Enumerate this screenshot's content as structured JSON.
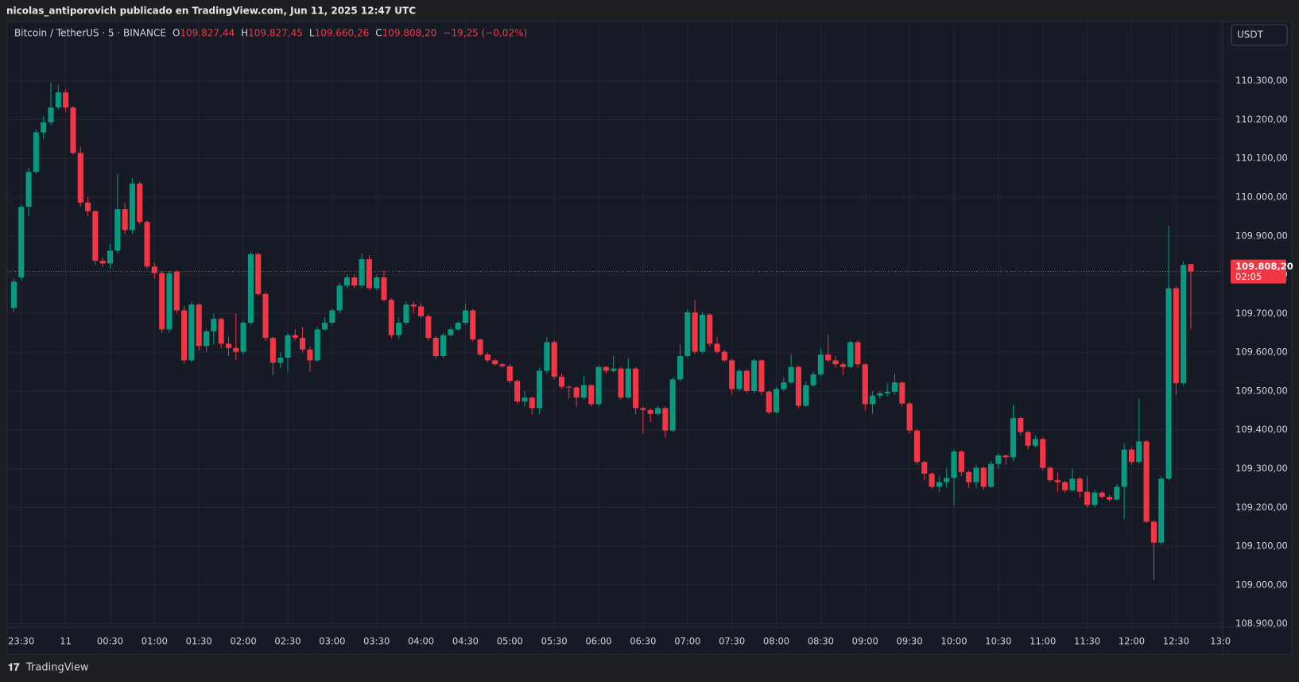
{
  "header": {
    "text": "nicolas_antiporovich publicado en TradingView.com, Jun 11, 2025 12:47 UTC"
  },
  "footer": {
    "brand": "TradingView"
  },
  "chart_data": {
    "type": "candlestick",
    "legend": {
      "symbol": "Bitcoin / TetherUS · 5 · BINANCE",
      "items": [
        {
          "key": "O",
          "text": "109.827,44"
        },
        {
          "key": "H",
          "text": "109.827,45"
        },
        {
          "key": "L",
          "text": "109.660,26"
        },
        {
          "key": "C",
          "text": "109.808,20"
        }
      ],
      "change": "−19,25 (−0,02%)"
    },
    "currency": "USDT",
    "last_price": {
      "label": "109.808,20",
      "countdown": "02:05"
    },
    "up_color": "#089981",
    "down_color": "#f23645",
    "grid": true,
    "xlim": [
      -0.8,
      163.3
    ],
    "xticks": [
      {
        "value": 1,
        "label": "23:30"
      },
      {
        "value": 7,
        "label": "11"
      },
      {
        "value": 13,
        "label": "00:30"
      },
      {
        "value": 19,
        "label": "01:00"
      },
      {
        "value": 25,
        "label": "01:30"
      },
      {
        "value": 31,
        "label": "02:00"
      },
      {
        "value": 37,
        "label": "02:30"
      },
      {
        "value": 43,
        "label": "03:00"
      },
      {
        "value": 49,
        "label": "03:30"
      },
      {
        "value": 55,
        "label": "04:00"
      },
      {
        "value": 61,
        "label": "04:30"
      },
      {
        "value": 67,
        "label": "05:00"
      },
      {
        "value": 73,
        "label": "05:30"
      },
      {
        "value": 79,
        "label": "06:00"
      },
      {
        "value": 85,
        "label": "06:30"
      },
      {
        "value": 91,
        "label": "07:00"
      },
      {
        "value": 97,
        "label": "07:30"
      },
      {
        "value": 103,
        "label": "08:00"
      },
      {
        "value": 109,
        "label": "08:30"
      },
      {
        "value": 115,
        "label": "09:00"
      },
      {
        "value": 121,
        "label": "09:30"
      },
      {
        "value": 127,
        "label": "10:00"
      },
      {
        "value": 133,
        "label": "10:30"
      },
      {
        "value": 139,
        "label": "11:00"
      },
      {
        "value": 145,
        "label": "11:30"
      },
      {
        "value": 151,
        "label": "12:00"
      },
      {
        "value": 157,
        "label": "12:30"
      },
      {
        "value": 163,
        "label": "13:0"
      }
    ],
    "ylim": [
      108891,
      110451
    ],
    "yticks": [
      {
        "value": 110300,
        "label": "110.300,00"
      },
      {
        "value": 110200,
        "label": "110.200,00"
      },
      {
        "value": 110100,
        "label": "110.100,00"
      },
      {
        "value": 110000,
        "label": "110.000,00"
      },
      {
        "value": 109900,
        "label": "109.900,00"
      },
      {
        "value": 109800,
        "label": "109.800,00"
      },
      {
        "value": 109700,
        "label": "109.700,00"
      },
      {
        "value": 109600,
        "label": "109.600,00"
      },
      {
        "value": 109500,
        "label": "109.500,00"
      },
      {
        "value": 109400,
        "label": "109.400,00"
      },
      {
        "value": 109300,
        "label": "109.300,00"
      },
      {
        "value": 109200,
        "label": "109.200,00"
      },
      {
        "value": 109100,
        "label": "109.100,00"
      },
      {
        "value": 109000,
        "label": "109.000,00"
      },
      {
        "value": 108900,
        "label": "108.900,00"
      }
    ],
    "ohlc": [
      [
        109714,
        109790,
        109705,
        109782
      ],
      [
        109793,
        109980,
        109785,
        109975
      ],
      [
        109975,
        110075,
        109950,
        110065
      ],
      [
        110065,
        110175,
        110060,
        110167
      ],
      [
        110167,
        110210,
        110150,
        110193
      ],
      [
        110193,
        110295,
        110185,
        110231
      ],
      [
        110231,
        110290,
        110225,
        110270
      ],
      [
        110270,
        110280,
        110220,
        110231
      ],
      [
        110231,
        110235,
        110110,
        110114
      ],
      [
        110114,
        110130,
        109975,
        109986
      ],
      [
        109986,
        110000,
        109950,
        109964
      ],
      [
        109964,
        109966,
        109825,
        109836
      ],
      [
        109836,
        109845,
        109820,
        109829
      ],
      [
        109829,
        109880,
        109815,
        109862
      ],
      [
        109862,
        110060,
        109855,
        109969
      ],
      [
        109969,
        109985,
        109905,
        109915
      ],
      [
        109915,
        110050,
        109905,
        110035
      ],
      [
        110035,
        110040,
        109930,
        109936
      ],
      [
        109936,
        109940,
        109815,
        109821
      ],
      [
        109821,
        109830,
        109790,
        109804
      ],
      [
        109804,
        109810,
        109650,
        109659
      ],
      [
        109659,
        109810,
        109650,
        109804
      ],
      [
        109808,
        109812,
        109700,
        109708
      ],
      [
        109708,
        109720,
        109570,
        109579
      ],
      [
        109579,
        109730,
        109575,
        109723
      ],
      [
        109723,
        109726,
        109605,
        109616
      ],
      [
        109616,
        109660,
        109600,
        109654
      ],
      [
        109654,
        109700,
        109620,
        109686
      ],
      [
        109686,
        109690,
        109610,
        109622
      ],
      [
        109622,
        109640,
        109590,
        109611
      ],
      [
        109611,
        109700,
        109580,
        109601
      ],
      [
        109601,
        109680,
        109595,
        109676
      ],
      [
        109676,
        109860,
        109670,
        109853
      ],
      [
        109853,
        109858,
        109745,
        109750
      ],
      [
        109750,
        109755,
        109630,
        109637
      ],
      [
        109637,
        109640,
        109540,
        109573
      ],
      [
        109573,
        109600,
        109560,
        109586
      ],
      [
        109586,
        109650,
        109550,
        109644
      ],
      [
        109644,
        109660,
        109630,
        109637
      ],
      [
        109637,
        109665,
        109600,
        109607
      ],
      [
        109607,
        109615,
        109550,
        109579
      ],
      [
        109579,
        109665,
        109575,
        109659
      ],
      [
        109659,
        109690,
        109655,
        109676
      ],
      [
        109676,
        109712,
        109670,
        109708
      ],
      [
        109708,
        109780,
        109700,
        109772
      ],
      [
        109772,
        109800,
        109765,
        109793
      ],
      [
        109793,
        109800,
        109765,
        109772
      ],
      [
        109772,
        109855,
        109765,
        109840
      ],
      [
        109840,
        109850,
        109760,
        109765
      ],
      [
        109765,
        109800,
        109760,
        109793
      ],
      [
        109793,
        109810,
        109730,
        109735
      ],
      [
        109735,
        109740,
        109635,
        109644
      ],
      [
        109644,
        109690,
        109635,
        109676
      ],
      [
        109676,
        109730,
        109670,
        109723
      ],
      [
        109723,
        109730,
        109700,
        109718
      ],
      [
        109718,
        109728,
        109688,
        109693
      ],
      [
        109693,
        109698,
        109630,
        109637
      ],
      [
        109637,
        109642,
        109585,
        109590
      ],
      [
        109590,
        109650,
        109585,
        109644
      ],
      [
        109644,
        109665,
        109640,
        109659
      ],
      [
        109659,
        109680,
        109655,
        109676
      ],
      [
        109676,
        109725,
        109670,
        109708
      ],
      [
        109708,
        109712,
        109628,
        109633
      ],
      [
        109633,
        109636,
        109590,
        109594
      ],
      [
        109594,
        109598,
        109574,
        109579
      ],
      [
        109579,
        109583,
        109565,
        109569
      ],
      [
        109569,
        109572,
        109560,
        109564
      ],
      [
        109564,
        109570,
        109520,
        109526
      ],
      [
        109526,
        109530,
        109468,
        109473
      ],
      [
        109473,
        109500,
        109460,
        109483
      ],
      [
        109483,
        109486,
        109440,
        109456
      ],
      [
        109456,
        109560,
        109440,
        109552
      ],
      [
        109552,
        109640,
        109545,
        109626
      ],
      [
        109626,
        109630,
        109530,
        109537
      ],
      [
        109537,
        109545,
        109505,
        109511
      ],
      [
        109511,
        109515,
        109480,
        109509
      ],
      [
        109509,
        109512,
        109460,
        109483
      ],
      [
        109483,
        109540,
        109478,
        109515
      ],
      [
        109515,
        109518,
        109460,
        109466
      ],
      [
        109466,
        109566,
        109460,
        109562
      ],
      [
        109562,
        109565,
        109545,
        109552
      ],
      [
        109552,
        109590,
        109548,
        109558
      ],
      [
        109558,
        109562,
        109478,
        109483
      ],
      [
        109483,
        109585,
        109480,
        109558
      ],
      [
        109558,
        109562,
        109440,
        109456
      ],
      [
        109456,
        109460,
        109390,
        109451
      ],
      [
        109451,
        109456,
        109420,
        109441
      ],
      [
        109441,
        109462,
        109436,
        109456
      ],
      [
        109456,
        109460,
        109380,
        109398
      ],
      [
        109398,
        109535,
        109394,
        109530
      ],
      [
        109530,
        109620,
        109525,
        109590
      ],
      [
        109590,
        109710,
        109585,
        109703
      ],
      [
        109703,
        109735,
        109595,
        109601
      ],
      [
        109601,
        109705,
        109596,
        109697
      ],
      [
        109697,
        109700,
        109615,
        109622
      ],
      [
        109622,
        109640,
        109596,
        109601
      ],
      [
        109601,
        109606,
        109574,
        109579
      ],
      [
        109579,
        109584,
        109490,
        109505
      ],
      [
        109505,
        109558,
        109500,
        109552
      ],
      [
        109552,
        109556,
        109494,
        109500
      ],
      [
        109500,
        109584,
        109495,
        109579
      ],
      [
        109579,
        109582,
        109490,
        109498
      ],
      [
        109498,
        109502,
        109440,
        109445
      ],
      [
        109445,
        109510,
        109442,
        109505
      ],
      [
        109505,
        109535,
        109500,
        109522
      ],
      [
        109522,
        109595,
        109518,
        109562
      ],
      [
        109562,
        109566,
        109456,
        109462
      ],
      [
        109462,
        109525,
        109458,
        109515
      ],
      [
        109515,
        109550,
        109510,
        109543
      ],
      [
        109543,
        109610,
        109538,
        109594
      ],
      [
        109594,
        109645,
        109574,
        109579
      ],
      [
        109579,
        109590,
        109560,
        109569
      ],
      [
        109569,
        109575,
        109540,
        109562
      ],
      [
        109562,
        109630,
        109558,
        109626
      ],
      [
        109626,
        109630,
        109560,
        109569
      ],
      [
        109569,
        109572,
        109450,
        109466
      ],
      [
        109466,
        109500,
        109440,
        109488
      ],
      [
        109488,
        109500,
        109480,
        109494
      ],
      [
        109494,
        109520,
        109485,
        109498
      ],
      [
        109498,
        109545,
        109490,
        109522
      ],
      [
        109522,
        109525,
        109460,
        109468
      ],
      [
        109468,
        109472,
        109390,
        109398
      ],
      [
        109398,
        109402,
        109310,
        109317
      ],
      [
        109317,
        109320,
        109270,
        109287
      ],
      [
        109287,
        109290,
        109248,
        109253
      ],
      [
        109253,
        109280,
        109240,
        109265
      ],
      [
        109265,
        109300,
        109250,
        109276
      ],
      [
        109276,
        109350,
        109205,
        109344
      ],
      [
        109344,
        109348,
        109280,
        109291
      ],
      [
        109291,
        109295,
        109250,
        109265
      ],
      [
        109265,
        109310,
        109250,
        109302
      ],
      [
        109302,
        109306,
        109245,
        109253
      ],
      [
        109253,
        109320,
        109250,
        109312
      ],
      [
        109312,
        109340,
        109300,
        109334
      ],
      [
        109334,
        109336,
        109310,
        109329
      ],
      [
        109329,
        109465,
        109320,
        109430
      ],
      [
        109430,
        109434,
        109385,
        109394
      ],
      [
        109394,
        109398,
        109350,
        109359
      ],
      [
        109359,
        109385,
        109355,
        109376
      ],
      [
        109376,
        109380,
        109295,
        109302
      ],
      [
        109302,
        109306,
        109265,
        109270
      ],
      [
        109270,
        109290,
        109240,
        109265
      ],
      [
        109265,
        109268,
        109238,
        109244
      ],
      [
        109244,
        109300,
        109240,
        109274
      ],
      [
        109274,
        109278,
        109225,
        109240
      ],
      [
        109240,
        109280,
        109200,
        109206
      ],
      [
        109206,
        109245,
        109200,
        109238
      ],
      [
        109238,
        109242,
        109222,
        109227
      ],
      [
        109227,
        109232,
        109215,
        109220
      ],
      [
        109220,
        109260,
        109218,
        109253
      ],
      [
        109253,
        109365,
        109170,
        109349
      ],
      [
        109349,
        109355,
        109310,
        109317
      ],
      [
        109317,
        109480,
        109312,
        109370
      ],
      [
        109370,
        109375,
        109160,
        109163
      ],
      [
        109163,
        109168,
        109013,
        109109
      ],
      [
        109109,
        109280,
        109105,
        109274
      ],
      [
        109274,
        109926,
        109270,
        109765
      ],
      [
        109765,
        109770,
        109490,
        109520
      ],
      [
        109520,
        109835,
        109515,
        109825
      ],
      [
        109827.44,
        109827.45,
        109660.26,
        109808.2
      ]
    ]
  }
}
